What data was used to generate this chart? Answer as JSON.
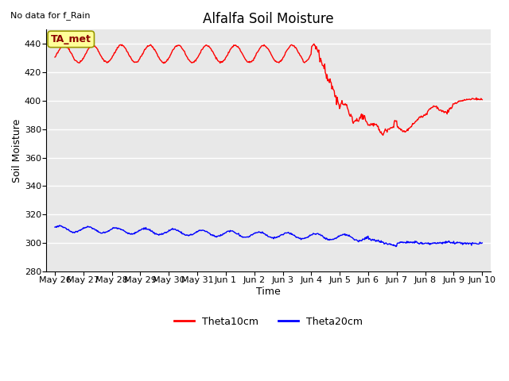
{
  "title": "Alfalfa Soil Moisture",
  "xlabel": "Time",
  "ylabel": "Soil Moisture",
  "top_left_text": "No data for f_Rain",
  "annotation_label": "TA_met",
  "ylim": [
    280,
    450
  ],
  "yticks": [
    280,
    300,
    320,
    340,
    360,
    380,
    400,
    420,
    440
  ],
  "xtick_labels": [
    "May 26",
    "May 27",
    "May 28",
    "May 29",
    "May 30",
    "May 31",
    "Jun 1",
    "Jun 2",
    "Jun 3",
    "Jun 4",
    "Jun 5",
    "Jun 6",
    "Jun 7",
    "Jun 8",
    "Jun 9",
    "Jun 10"
  ],
  "theta10_color": "#ff0000",
  "theta20_color": "#0000ff",
  "bg_color": "#e8e8e8",
  "grid_color": "#ffffff",
  "legend_labels": [
    "Theta10cm",
    "Theta20cm"
  ],
  "annotation_box_color": "#ffff99",
  "annotation_box_edge": "#999900",
  "title_fontsize": 12,
  "axis_label_fontsize": 9,
  "tick_fontsize": 8,
  "figsize": [
    6.4,
    4.8
  ],
  "dpi": 100
}
